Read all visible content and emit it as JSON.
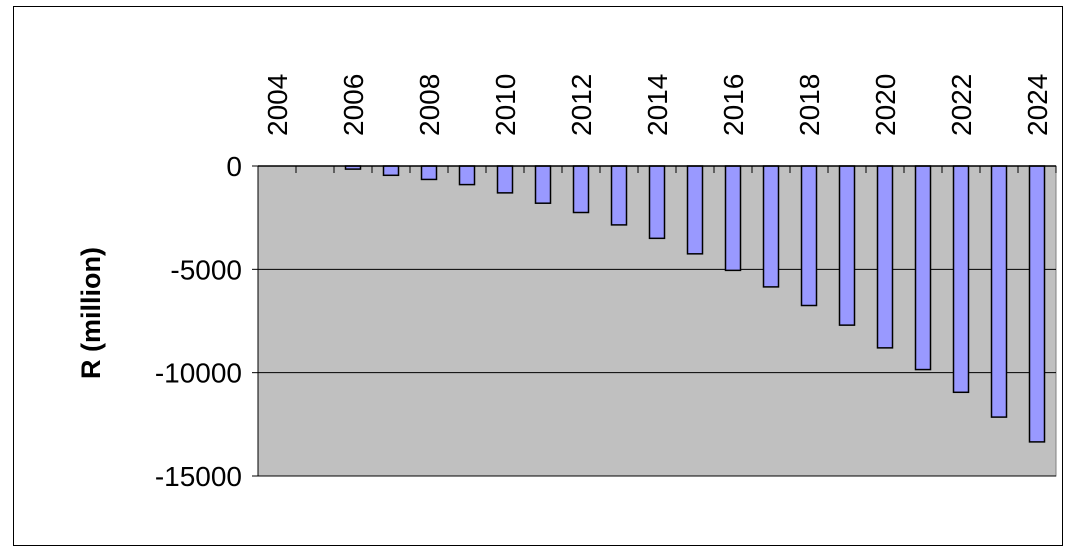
{
  "chart_data": {
    "type": "bar",
    "title": "",
    "xlabel": "",
    "ylabel": "R (million)",
    "ylim": [
      -15000,
      0
    ],
    "yticks": [
      0,
      -5000,
      -10000,
      -15000
    ],
    "ytick_labels": [
      "0",
      "-5000",
      "-10000",
      "-15000"
    ],
    "xtick_labels": [
      "2004",
      "2006",
      "2008",
      "2010",
      "2012",
      "2014",
      "2016",
      "2018",
      "2020",
      "2022",
      "2024"
    ],
    "x_axis_position": "top",
    "grid": true,
    "legend": "none",
    "categories": [
      "2004",
      "2005",
      "2006",
      "2007",
      "2008",
      "2009",
      "2010",
      "2011",
      "2012",
      "2013",
      "2014",
      "2015",
      "2016",
      "2017",
      "2018",
      "2019",
      "2020",
      "2021",
      "2022",
      "2023",
      "2024"
    ],
    "values": [
      0,
      0,
      -150,
      -450,
      -650,
      -900,
      -1300,
      -1800,
      -2250,
      -2850,
      -3500,
      -4250,
      -5050,
      -5850,
      -6750,
      -7700,
      -8800,
      -9850,
      -10950,
      -12150,
      -13350
    ],
    "colors": {
      "bar_fill": "#9999ff",
      "bar_stroke": "#000000",
      "plot_area": "#c0c0c0",
      "gridline": "#000000",
      "text": "#000000"
    }
  }
}
